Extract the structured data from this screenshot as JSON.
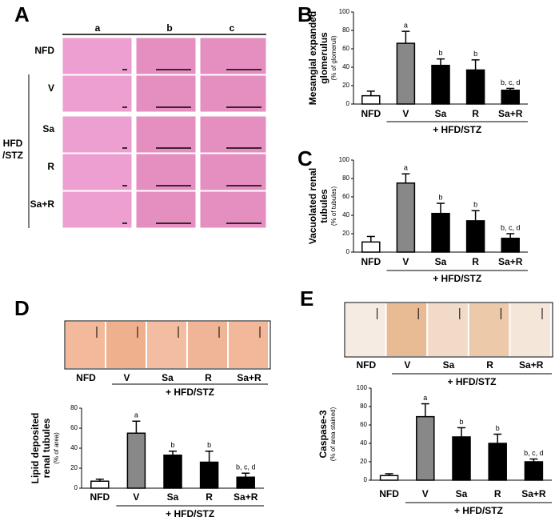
{
  "panel_labels": [
    "A",
    "B",
    "C",
    "D",
    "E"
  ],
  "panel_a": {
    "column_labels": [
      "a",
      "b",
      "c"
    ],
    "row_labels": [
      "NFD",
      "V",
      "Sa",
      "R",
      "Sa+R"
    ],
    "group_label": [
      "HFD",
      "/STZ"
    ]
  },
  "panel_d": {
    "image_labels": [
      "NFD",
      "V",
      "Sa",
      "R",
      "Sa+R"
    ],
    "group_label": "+ HFD/STZ"
  },
  "panel_e": {
    "image_labels": [
      "NFD",
      "V",
      "Sa",
      "R",
      "Sa+R"
    ],
    "group_label": "+ HFD/STZ"
  },
  "chart_data": [
    {
      "type": "bar",
      "ylabel": [
        "Mesangial expanded",
        "glomerulus"
      ],
      "ylabel_sub": "(% of glomeruli)",
      "categories": [
        "NFD",
        "V",
        "Sa",
        "R",
        "Sa+R"
      ],
      "group_label": "+ HFD/STZ",
      "values": [
        9,
        66,
        42,
        37,
        15
      ],
      "errors": [
        5,
        13,
        7,
        11,
        2
      ],
      "colors": [
        "#ffffff",
        "#888888",
        "#000000",
        "#000000",
        "#000000"
      ],
      "annotations": [
        null,
        "a",
        "b",
        "b",
        "b, c, d"
      ],
      "ylim": [
        0,
        100
      ],
      "yticks": [
        0,
        20,
        40,
        60,
        80,
        100
      ]
    },
    {
      "type": "bar",
      "ylabel": [
        "Vacuolated renal",
        "tubules"
      ],
      "ylabel_sub": "(% of tubules)",
      "categories": [
        "NFD",
        "V",
        "Sa",
        "R",
        "Sa+R"
      ],
      "group_label": "+ HFD/STZ",
      "values": [
        11,
        75,
        42,
        34,
        15
      ],
      "errors": [
        6,
        10,
        11,
        11,
        5
      ],
      "colors": [
        "#ffffff",
        "#888888",
        "#000000",
        "#000000",
        "#000000"
      ],
      "annotations": [
        null,
        "a",
        "b",
        "b",
        "b, c, d"
      ],
      "ylim": [
        0,
        100
      ],
      "yticks": [
        0,
        20,
        40,
        60,
        80,
        100
      ]
    },
    {
      "type": "bar",
      "ylabel": [
        "Lipid deposited",
        "renal tubules"
      ],
      "ylabel_sub": "(% of area)",
      "categories": [
        "NFD",
        "V",
        "Sa",
        "R",
        "Sa+R"
      ],
      "group_label": "+ HFD/STZ",
      "values": [
        7,
        55,
        33,
        26,
        11
      ],
      "errors": [
        2,
        12,
        4,
        11,
        4
      ],
      "colors": [
        "#ffffff",
        "#888888",
        "#000000",
        "#000000",
        "#000000"
      ],
      "annotations": [
        null,
        "a",
        "b",
        "b",
        "b, c, d"
      ],
      "ylim": [
        0,
        80
      ],
      "yticks": [
        0,
        20,
        40,
        60,
        80
      ]
    },
    {
      "type": "bar",
      "ylabel": [
        "Caspase-3"
      ],
      "ylabel_sub": "(% of area stained)",
      "categories": [
        "NFD",
        "V",
        "Sa",
        "R",
        "Sa+R"
      ],
      "group_label": "+ HFD/STZ",
      "values": [
        5,
        69,
        47,
        40,
        20
      ],
      "errors": [
        2,
        14,
        10,
        10,
        3
      ],
      "colors": [
        "#ffffff",
        "#888888",
        "#000000",
        "#000000",
        "#000000"
      ],
      "annotations": [
        null,
        "a",
        "b",
        "b",
        "b, c, d"
      ],
      "ylim": [
        0,
        100
      ],
      "yticks": [
        0,
        20,
        40,
        60,
        80,
        100
      ]
    }
  ]
}
